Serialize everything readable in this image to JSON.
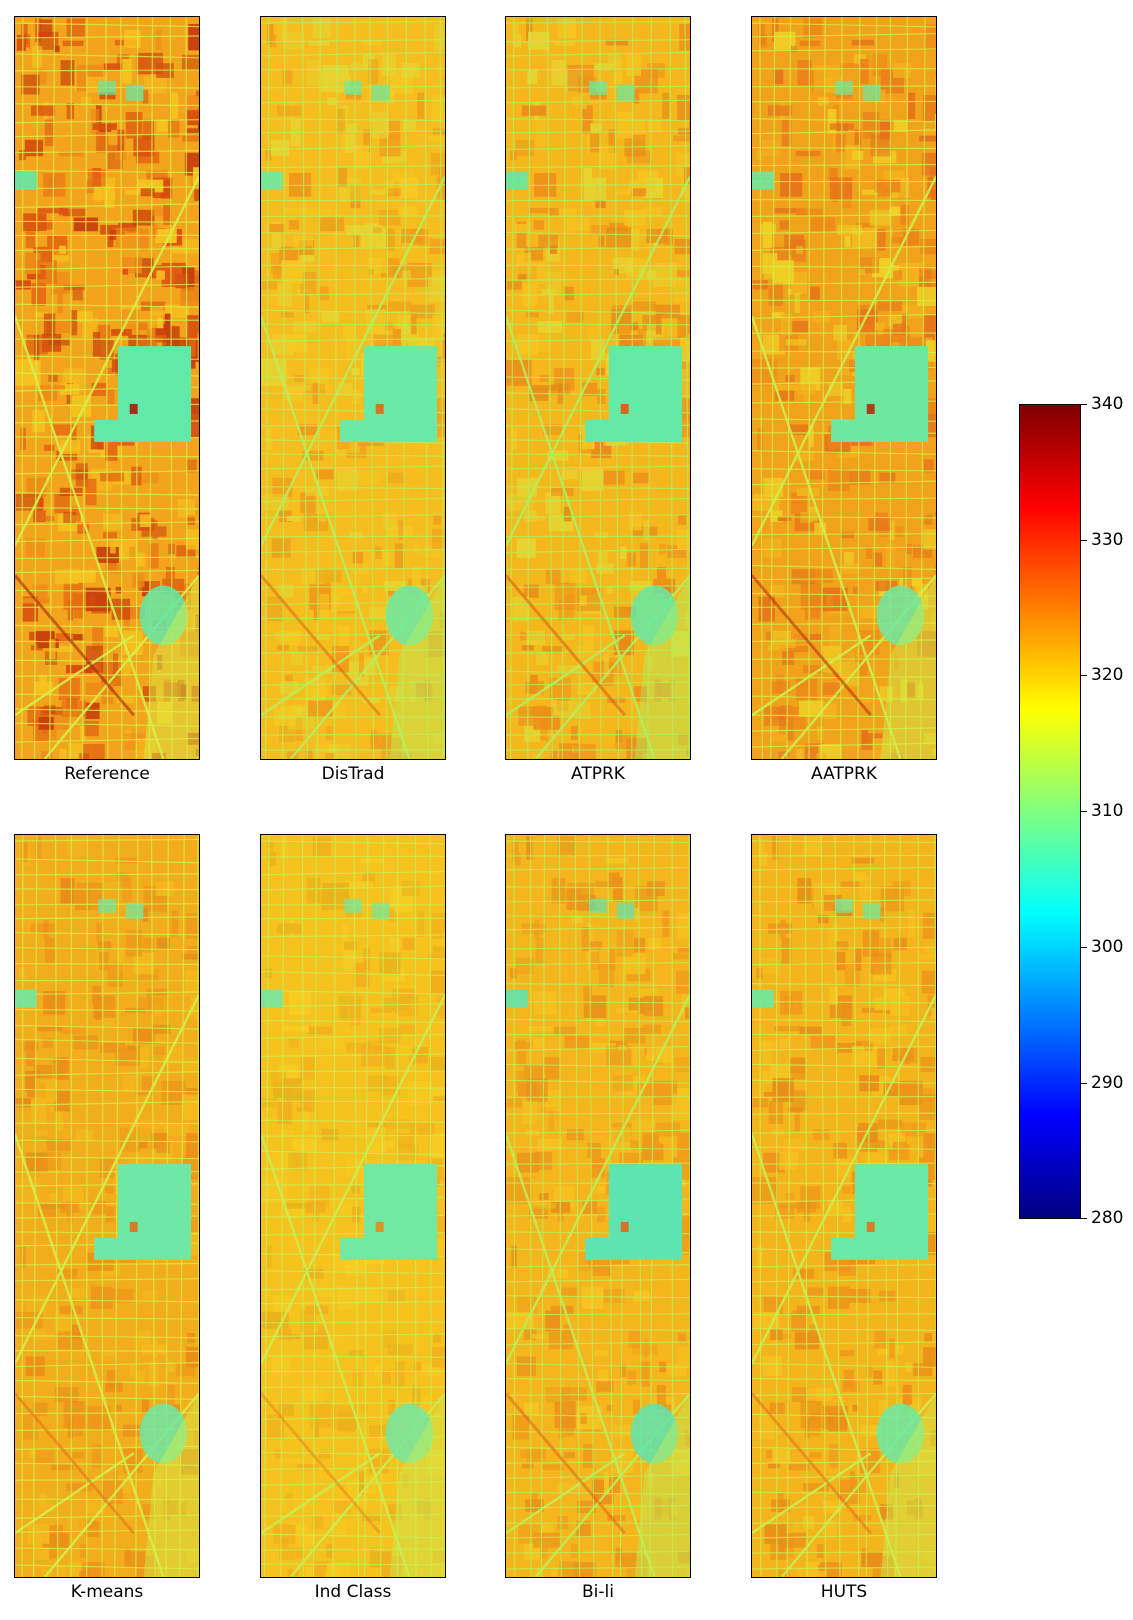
{
  "panels": [
    {
      "label": "Reference",
      "theme": "reference"
    },
    {
      "label": "DisTrad",
      "theme": "distrad"
    },
    {
      "label": "ATPRK",
      "theme": "atprk"
    },
    {
      "label": "AATPRK",
      "theme": "aatprk"
    },
    {
      "label": "K-means",
      "theme": "kmeans"
    },
    {
      "label": "Ind Class",
      "theme": "indclass"
    },
    {
      "label": "Bi-li",
      "theme": "bili"
    },
    {
      "label": "HUTS",
      "theme": "huts"
    }
  ],
  "colorbar": {
    "min": 280,
    "max": 340,
    "colormap": "jet",
    "ticks": [
      "340",
      "330",
      "320",
      "310",
      "300",
      "290",
      "280"
    ]
  }
}
